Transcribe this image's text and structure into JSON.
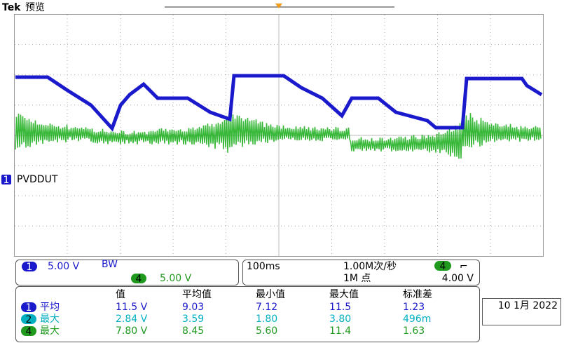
{
  "header": {
    "brand": "Tek",
    "mode": "预览"
  },
  "channel_marker": {
    "number": "1",
    "name": "PVDDUT"
  },
  "vertical": {
    "ch1": {
      "number": "1",
      "scale": "5.00 V",
      "bandwidth": "BW"
    },
    "ch4": {
      "number": "4",
      "scale": "5.00 V"
    }
  },
  "horizontal": {
    "timebase": "100ms",
    "sample_rate": "1.00M次/秒",
    "record_length": "1M 点",
    "trigger": {
      "source": "4",
      "slope": "⌐",
      "level": "4.00 V"
    }
  },
  "measurements": {
    "columns": [
      "值",
      "平均值",
      "最小值",
      "最大值",
      "标准差"
    ],
    "rows": [
      {
        "channel": "1",
        "label": "平均",
        "cells": [
          "11.5 V",
          "9.03",
          "7.12",
          "11.5",
          "1.23"
        ]
      },
      {
        "channel": "2",
        "label": "最大",
        "cells": [
          "2.84 V",
          "3.59",
          "1.80",
          "3.80",
          "496m"
        ]
      },
      {
        "channel": "4",
        "label": "最大",
        "cells": [
          "7.80 V",
          "8.45",
          "5.60",
          "11.4",
          "1.63"
        ]
      }
    ]
  },
  "date": "10 1月 2022"
}
